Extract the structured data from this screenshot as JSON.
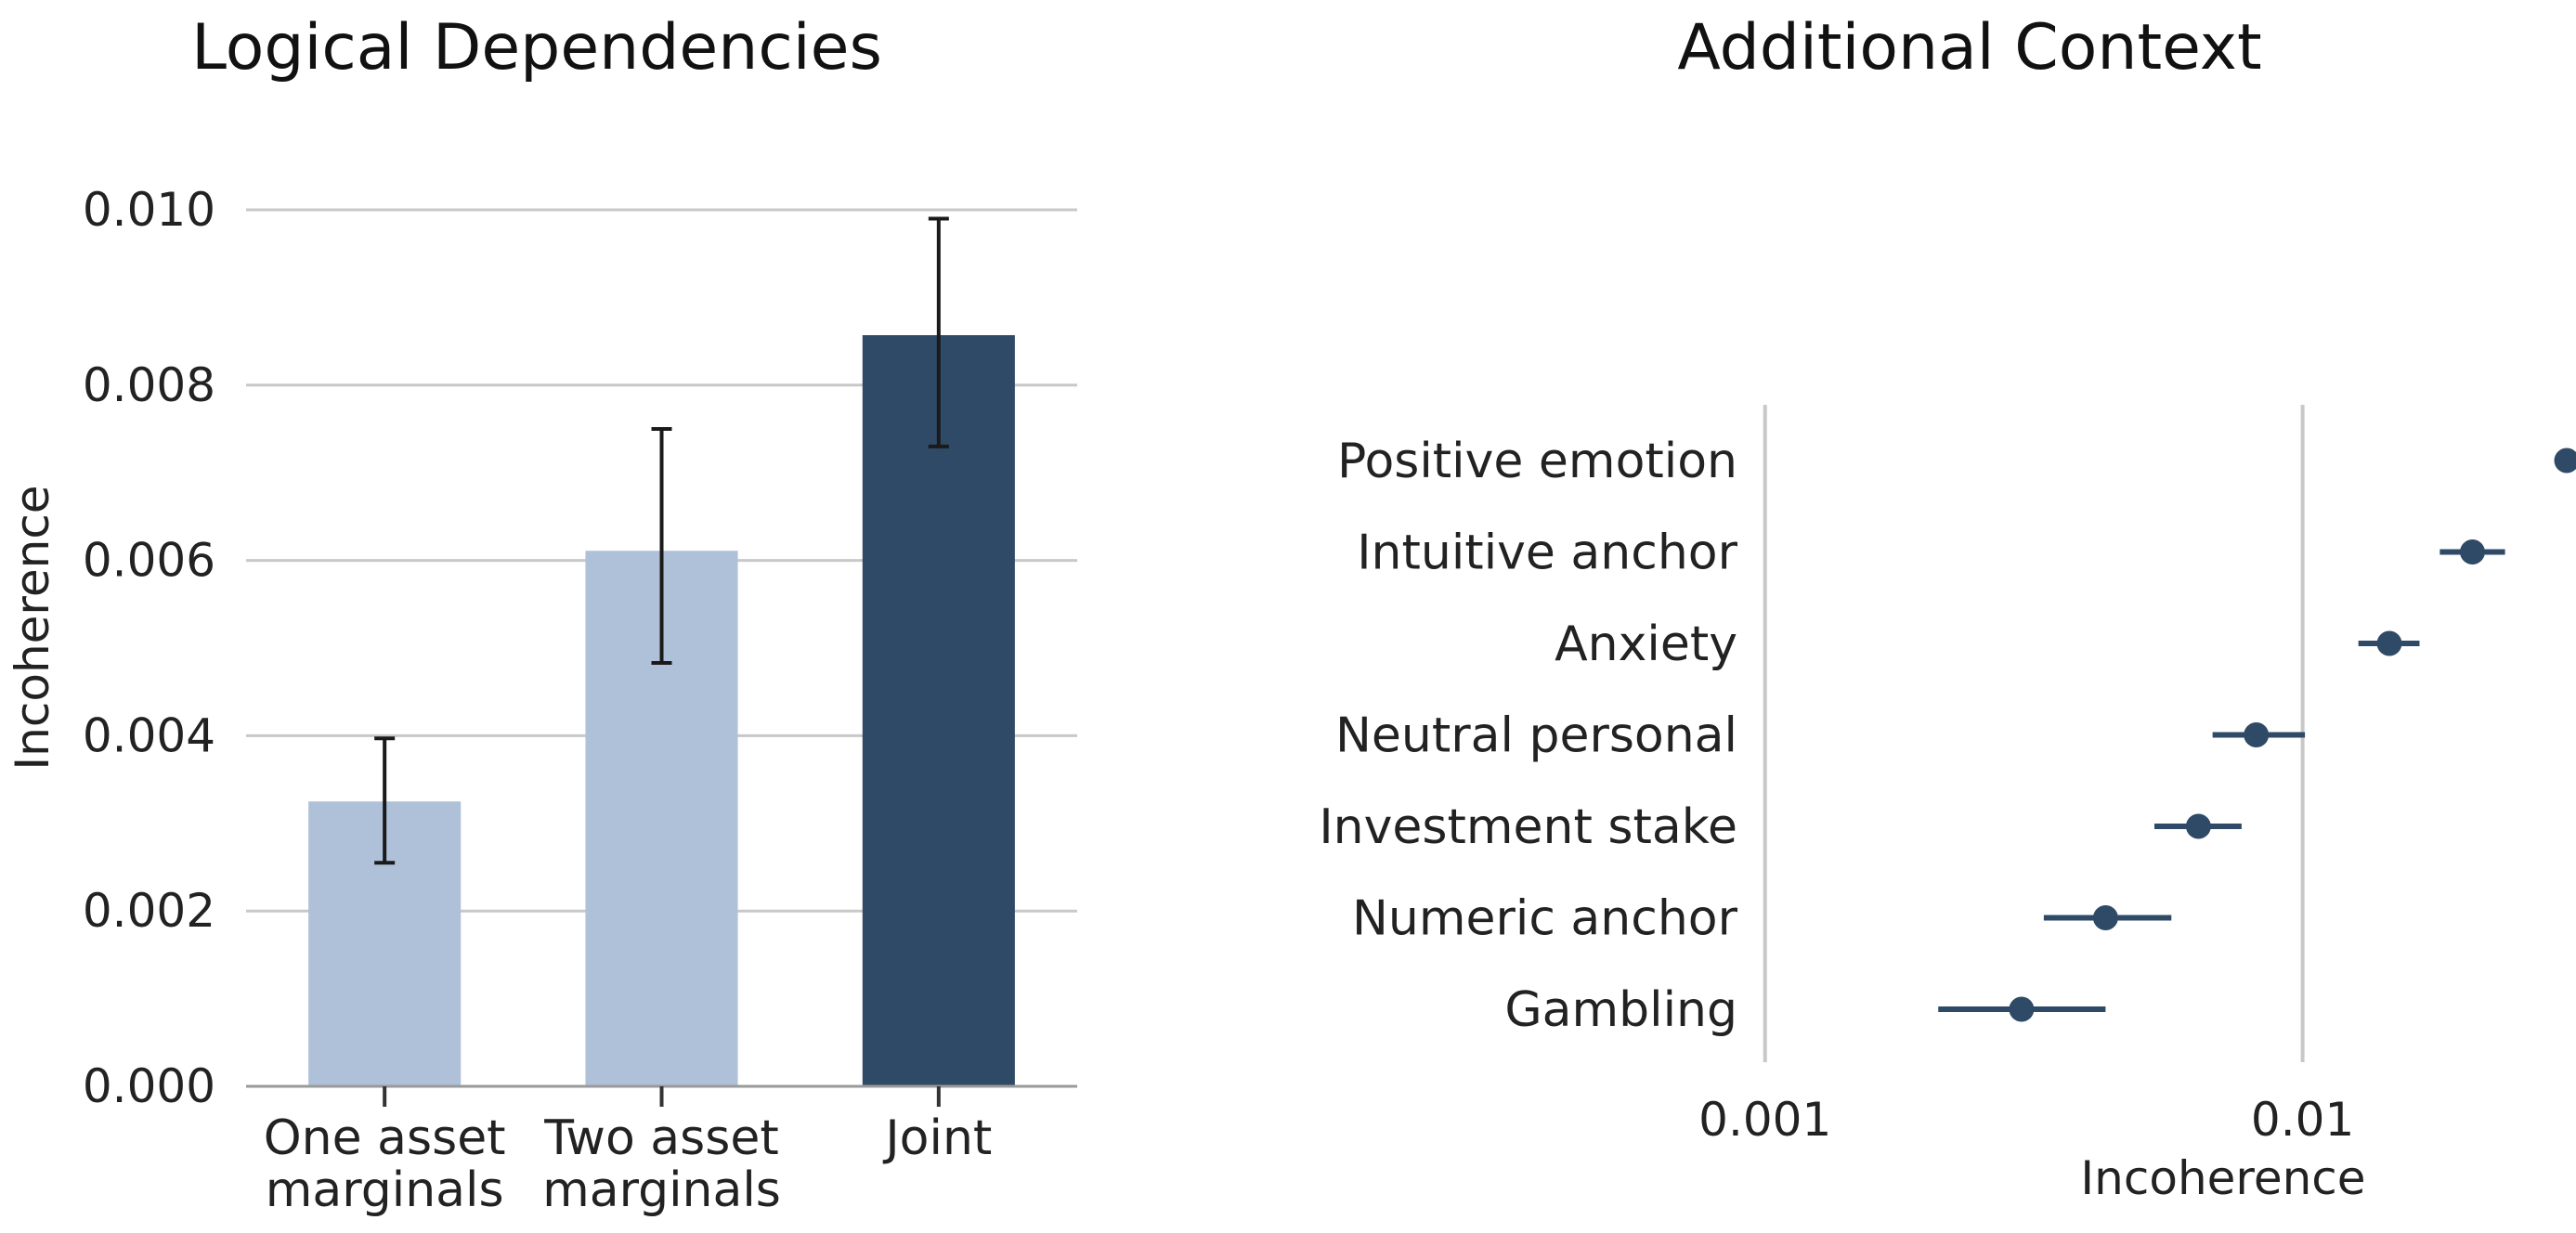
{
  "chart_data": [
    {
      "type": "bar",
      "title": "Logical Dependencies",
      "ylabel": "Incoherence",
      "xlabel": "",
      "ylim": [
        0,
        0.01
      ],
      "yticks": [
        "0.000",
        "0.002",
        "0.004",
        "0.006",
        "0.008",
        "0.010"
      ],
      "grid": true,
      "categories": [
        [
          "One asset",
          "marginals"
        ],
        [
          "Two asset",
          "marginals"
        ],
        [
          "Joint"
        ]
      ],
      "values": [
        0.00325,
        0.00611,
        0.00857
      ],
      "error_low": [
        0.00255,
        0.00483,
        0.0073
      ],
      "error_high": [
        0.00397,
        0.0075,
        0.0099
      ],
      "colors": [
        "#aec1d8",
        "#aec1d8",
        "#2f4a66"
      ]
    },
    {
      "type": "scatter",
      "title": "Additional Context",
      "xlabel": "Incoherence",
      "ylabel": "",
      "xscale": "log",
      "xlim": [
        0.00045,
        0.032
      ],
      "xticks": [
        "0.001",
        "0.01"
      ],
      "xtick_values": [
        0.001,
        0.01
      ],
      "categories": [
        "Positive emotion",
        "Intuitive anchor",
        "Anxiety",
        "Neutral personal",
        "Investment stake",
        "Numeric anchor",
        "Gambling"
      ],
      "values": [
        0.031,
        0.0207,
        0.0145,
        0.0082,
        0.0064,
        0.0043,
        0.003
      ],
      "error_low": [
        0.031,
        0.018,
        0.0127,
        0.0068,
        0.0053,
        0.0033,
        0.0021
      ],
      "error_high": [
        0.031,
        0.0238,
        0.0165,
        0.0101,
        0.0077,
        0.0057,
        0.0043
      ],
      "color": "#2f4a66"
    }
  ]
}
